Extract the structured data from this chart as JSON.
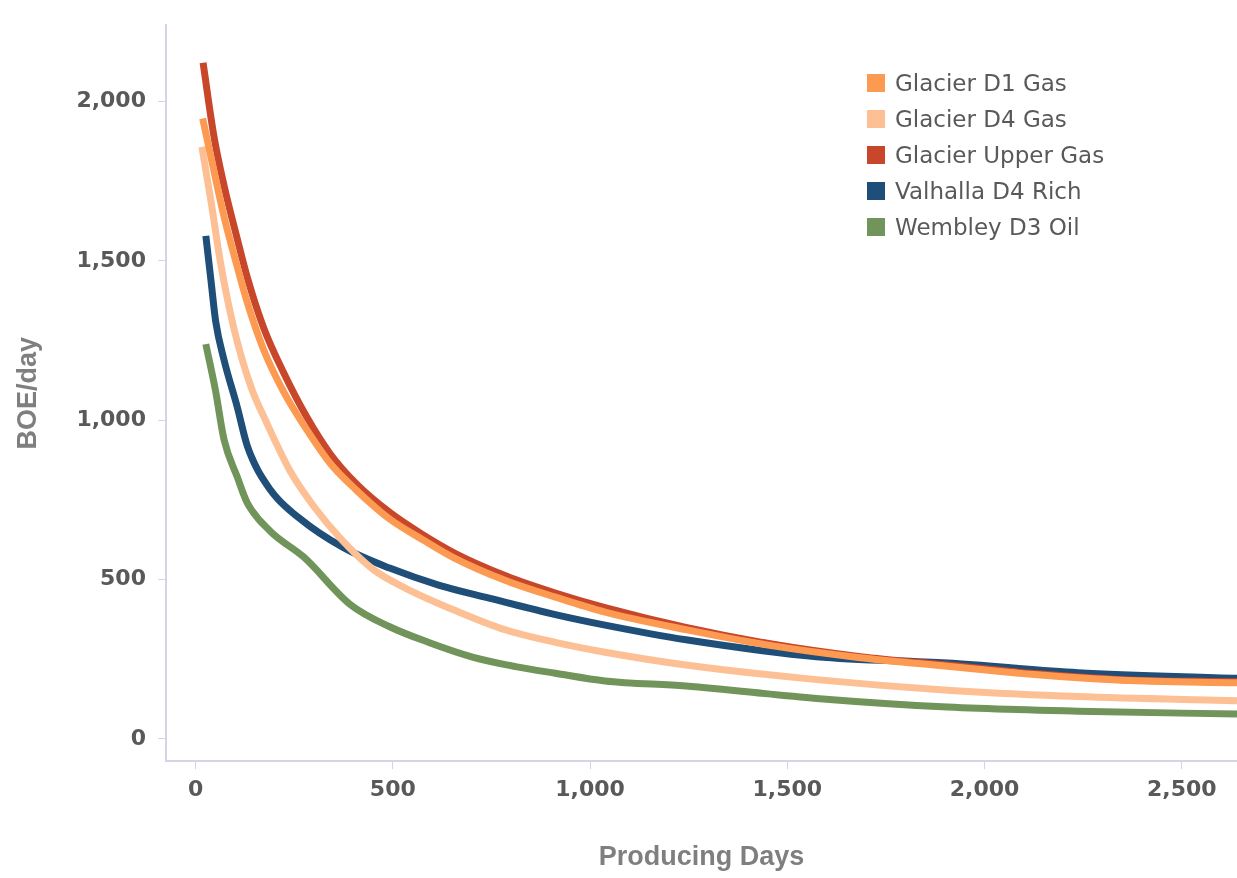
{
  "chart_data": {
    "type": "line",
    "xlabel": "Producing Days",
    "ylabel": "BOE/day",
    "xlim": [
      -75,
      2640
    ],
    "ylim": [
      -70,
      2240
    ],
    "xticks": [
      {
        "value": 0,
        "label": "0"
      },
      {
        "value": 500,
        "label": "500"
      },
      {
        "value": 1000,
        "label": "1,000"
      },
      {
        "value": 1500,
        "label": "1,500"
      },
      {
        "value": 2000,
        "label": "2,000"
      },
      {
        "value": 2500,
        "label": "2,500"
      }
    ],
    "yticks": [
      {
        "value": 0,
        "label": "0"
      },
      {
        "value": 500,
        "label": "500"
      },
      {
        "value": 1000,
        "label": "1,000"
      },
      {
        "value": 1500,
        "label": "1,500"
      },
      {
        "value": 2000,
        "label": "2,000"
      }
    ],
    "grid": false,
    "legend": "top right",
    "marker": "none",
    "line_style": "solid",
    "series": [
      {
        "name": "Glacier D1 Gas",
        "color": "#fd9a52",
        "x": [
          18,
          47,
          72,
          106,
          131,
          173,
          223,
          282,
          341,
          408,
          492,
          576,
          660,
          786,
          912,
          1038,
          1243,
          1464,
          1685,
          1906,
          2126,
          2348,
          2640
        ],
        "values": [
          1947,
          1780,
          1640,
          1480,
          1370,
          1220,
          1090,
          970,
          865,
          780,
          690,
          625,
          565,
          497,
          445,
          398,
          343,
          292,
          255,
          228,
          202,
          184,
          176
        ]
      },
      {
        "name": "Glacier D4 Gas",
        "color": "#fdc095",
        "x": [
          16,
          39,
          64,
          97,
          139,
          181,
          240,
          299,
          366,
          450,
          534,
          660,
          786,
          912,
          1038,
          1243,
          1574,
          1906,
          2237,
          2640
        ],
        "values": [
          1858,
          1688,
          1489,
          1289,
          1110,
          990,
          840,
          731,
          631,
          532,
          472,
          402,
          342,
          303,
          272,
          232,
          186,
          153,
          133,
          120
        ]
      },
      {
        "name": "Glacier Upper Gas",
        "color": "#c8472a",
        "x": [
          19,
          47,
          72,
          106,
          131,
          173,
          223,
          282,
          341,
          408,
          492,
          576,
          660,
          786,
          912,
          1038,
          1243,
          1464,
          1685,
          1906,
          2126,
          2348,
          2640
        ],
        "values": [
          2122,
          1888,
          1738,
          1568,
          1449,
          1289,
          1150,
          1010,
          895,
          800,
          711,
          641,
          581,
          512,
          458,
          412,
          350,
          297,
          258,
          232,
          205,
          186,
          179
        ]
      },
      {
        "name": "Valhalla D4 Rich",
        "color": "#1f4e79",
        "x": [
          26,
          39,
          51,
          72,
          106,
          131,
          190,
          265,
          374,
          492,
          618,
          744,
          912,
          1038,
          1243,
          1574,
          1906,
          2237,
          2640
        ],
        "values": [
          1579,
          1439,
          1310,
          1190,
          1040,
          920,
          781,
          691,
          601,
          536,
          482,
          442,
          390,
          357,
          311,
          258,
          238,
          208,
          190
        ]
      },
      {
        "name": "Wembley D3 Oil",
        "color": "#71945a",
        "x": [
          26,
          51,
          72,
          106,
          131,
          190,
          274,
          392,
          492,
          593,
          702,
          811,
          912,
          1038,
          1243,
          1574,
          1906,
          2237,
          2640
        ],
        "values": [
          1239,
          1090,
          940,
          821,
          741,
          651,
          571,
          422,
          352,
          302,
          257,
          227,
          206,
          182,
          166,
          127,
          100,
          87,
          78
        ]
      }
    ]
  }
}
